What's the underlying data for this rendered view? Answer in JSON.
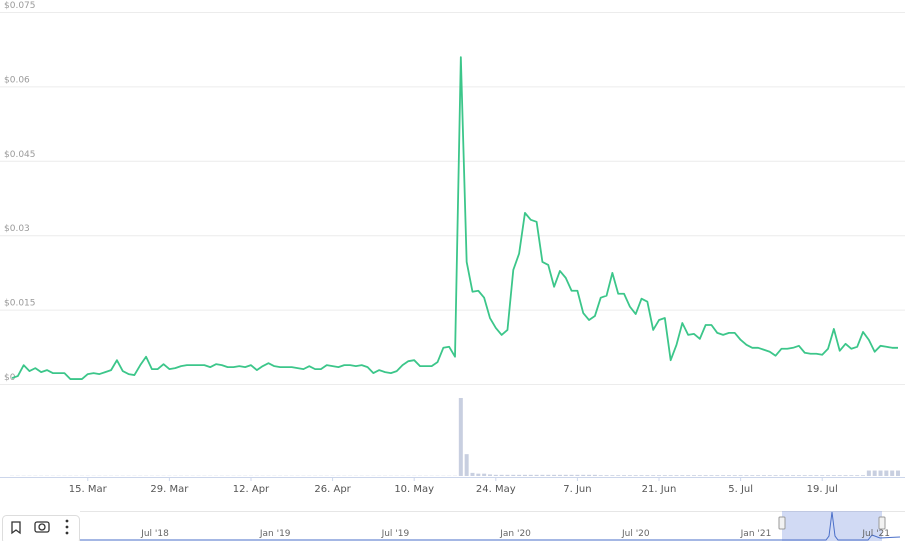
{
  "chart_data": {
    "type": "line",
    "x": [
      "2. Mar",
      "3. Mar",
      "4. Mar",
      "5. Mar",
      "6. Mar",
      "7. Mar",
      "8. Mar",
      "9. Mar",
      "10. Mar",
      "11. Mar",
      "12. Mar",
      "13. Mar",
      "14. Mar",
      "15. Mar",
      "16. Mar",
      "17. Mar",
      "18. Mar",
      "19. Mar",
      "20. Mar",
      "21. Mar",
      "22. Mar",
      "23. Mar",
      "24. Mar",
      "25. Mar",
      "26. Mar",
      "27. Mar",
      "28. Mar",
      "29. Mar",
      "30. Mar",
      "31. Mar",
      "1. Apr",
      "2. Apr",
      "3. Apr",
      "4. Apr",
      "5. Apr",
      "6. Apr",
      "7. Apr",
      "8. Apr",
      "9. Apr",
      "10. Apr",
      "11. Apr",
      "12. Apr",
      "13. Apr",
      "14. Apr",
      "15. Apr",
      "16. Apr",
      "17. Apr",
      "18. Apr",
      "19. Apr",
      "20. Apr",
      "21. Apr",
      "22. Apr",
      "23. Apr",
      "24. Apr",
      "25. Apr",
      "26. Apr",
      "27. Apr",
      "28. Apr",
      "29. Apr",
      "30. Apr",
      "1. May",
      "2. May",
      "3. May",
      "4. May",
      "5. May",
      "6. May",
      "7. May",
      "8. May",
      "9. May",
      "10. May",
      "11. May",
      "12. May",
      "13. May",
      "14. May",
      "15. May",
      "16. May",
      "17. May",
      "18. May",
      "19. May",
      "20. May",
      "21. May",
      "22. May",
      "23. May",
      "24. May",
      "25. May",
      "26. May",
      "27. May",
      "28. May",
      "29. May",
      "30. May",
      "31. May",
      "1. Jun",
      "2. Jun",
      "3. Jun",
      "4. Jun",
      "5. Jun",
      "6. Jun",
      "7. Jun",
      "8. Jun",
      "9. Jun",
      "10. Jun",
      "11. Jun",
      "12. Jun",
      "13. Jun",
      "14. Jun",
      "15. Jun",
      "16. Jun",
      "17. Jun",
      "18. Jun",
      "19. Jun",
      "20. Jun",
      "21. Jun",
      "22. Jun",
      "23. Jun",
      "24. Jun",
      "25. Jun",
      "26. Jun",
      "27. Jun",
      "28. Jun",
      "29. Jun",
      "30. Jun",
      "1. Jul",
      "2. Jul",
      "3. Jul",
      "4. Jul",
      "5. Jul",
      "6. Jul",
      "7. Jul",
      "8. Jul",
      "9. Jul",
      "10. Jul",
      "11. Jul",
      "12. Jul",
      "13. Jul",
      "14. Jul",
      "15. Jul",
      "16. Jul",
      "17. Jul",
      "18. Jul",
      "19. Jul",
      "20. Jul",
      "21. Jul",
      "22. Jul",
      "23. Jul",
      "24. Jul",
      "25. Jul",
      "26. Jul",
      "27. Jul",
      "28. Jul",
      "29. Jul",
      "30. Jul",
      "31. Jul",
      "1. Aug"
    ],
    "series": [
      {
        "color": "#3cc68a",
        "values": [
          0.0012,
          0.0016,
          0.0038,
          0.0026,
          0.0032,
          0.0024,
          0.0028,
          0.0022,
          0.0022,
          0.0022,
          0.001,
          0.001,
          0.001,
          0.002,
          0.0022,
          0.002,
          0.0024,
          0.0028,
          0.0048,
          0.0026,
          0.002,
          0.0018,
          0.0038,
          0.0055,
          0.003,
          0.003,
          0.004,
          0.003,
          0.0032,
          0.0036,
          0.0038,
          0.0038,
          0.0038,
          0.0038,
          0.0034,
          0.004,
          0.0038,
          0.0034,
          0.0034,
          0.0036,
          0.0034,
          0.0038,
          0.0028,
          0.0036,
          0.0042,
          0.0036,
          0.0034,
          0.0034,
          0.0034,
          0.0032,
          0.003,
          0.0036,
          0.003,
          0.003,
          0.0038,
          0.0036,
          0.0034,
          0.0038,
          0.0038,
          0.0036,
          0.0038,
          0.0034,
          0.0022,
          0.0028,
          0.0024,
          0.0022,
          0.0026,
          0.0038,
          0.0046,
          0.0048,
          0.0036,
          0.0036,
          0.0036,
          0.0044,
          0.0073,
          0.0075,
          0.0055,
          0.0659,
          0.0246,
          0.0186,
          0.0188,
          0.0174,
          0.0133,
          0.0113,
          0.0099,
          0.0109,
          0.023,
          0.0263,
          0.0345,
          0.0331,
          0.0327,
          0.0246,
          0.024,
          0.0196,
          0.0228,
          0.0214,
          0.0188,
          0.0188,
          0.0143,
          0.0129,
          0.0137,
          0.0174,
          0.0178,
          0.0224,
          0.0182,
          0.0182,
          0.0156,
          0.0141,
          0.0172,
          0.0166,
          0.0109,
          0.0129,
          0.0133,
          0.0048,
          0.0079,
          0.0123,
          0.0099,
          0.0101,
          0.0091,
          0.0119,
          0.0119,
          0.0103,
          0.0099,
          0.0103,
          0.0103,
          0.0089,
          0.0079,
          0.0073,
          0.0073,
          0.0069,
          0.0065,
          0.0057,
          0.0071,
          0.0071,
          0.0073,
          0.0077,
          0.0063,
          0.0061,
          0.0061,
          0.0059,
          0.0071,
          0.0111,
          0.0067,
          0.0081,
          0.0071,
          0.0075,
          0.0105,
          0.0089,
          0.0065,
          0.0077,
          0.0075,
          0.0073,
          0.0073
        ]
      }
    ],
    "volume": {
      "color": "#c8cfe0",
      "values": [
        0.3,
        0.3,
        0.3,
        0.3,
        0.3,
        0.3,
        0.3,
        0.3,
        0.3,
        0.3,
        0.3,
        0.3,
        0.3,
        0.3,
        0.3,
        0.3,
        0.3,
        0.3,
        0.3,
        0.3,
        0.3,
        0.3,
        0.3,
        0.3,
        0.3,
        0.3,
        0.3,
        0.3,
        0.3,
        0.3,
        0.3,
        0.3,
        0.3,
        0.3,
        0.3,
        0.3,
        0.3,
        0.3,
        0.3,
        0.3,
        0.3,
        0.3,
        0.3,
        0.3,
        0.3,
        0.3,
        0.3,
        0.3,
        0.3,
        0.3,
        0.3,
        0.3,
        0.3,
        0.3,
        0.3,
        0.3,
        0.3,
        0.3,
        0.3,
        0.3,
        0.3,
        0.3,
        0.3,
        0.3,
        0.3,
        0.3,
        0.3,
        0.3,
        0.3,
        0.3,
        0.3,
        0.3,
        0.3,
        0.3,
        0.3,
        0.3,
        0.3,
        100,
        28,
        4,
        3,
        3,
        2,
        1.5,
        1.5,
        1.5,
        1.5,
        1.5,
        1.5,
        1.5,
        1.5,
        1.5,
        1.5,
        1.5,
        1.5,
        1.5,
        1.5,
        1.5,
        1.5,
        1.5,
        1.5,
        1,
        1,
        1,
        1,
        1,
        1,
        1,
        1,
        1,
        1,
        1,
        1,
        1,
        1,
        1,
        1,
        1,
        1,
        1,
        1,
        1,
        1,
        1,
        1,
        1,
        1,
        1,
        1,
        1,
        1,
        1,
        1,
        1,
        1,
        1,
        1,
        1,
        1,
        1,
        1,
        1,
        1,
        1,
        1,
        1,
        1,
        7,
        7,
        7,
        7,
        7,
        7
      ]
    },
    "ylim": [
      0,
      0.075
    ],
    "yticks": [
      {
        "value": 0,
        "label": "$0"
      },
      {
        "value": 0.015,
        "label": "$0.015"
      },
      {
        "value": 0.03,
        "label": "$0.03"
      },
      {
        "value": 0.045,
        "label": "$0.045"
      },
      {
        "value": 0.06,
        "label": "$0.06"
      },
      {
        "value": 0.075,
        "label": "$0.075"
      }
    ],
    "xticks": [
      "15. Mar",
      "29. Mar",
      "12. Apr",
      "26. Apr",
      "10. May",
      "24. May",
      "7. Jun",
      "21. Jun",
      "5. Jul",
      "19. Jul"
    ],
    "grid": true,
    "navigator": {
      "labels": [
        "Jul '18",
        "Jan '19",
        "Jul '19",
        "Jan '20",
        "Jul '20",
        "Jan '21",
        "Jul '21"
      ]
    }
  }
}
